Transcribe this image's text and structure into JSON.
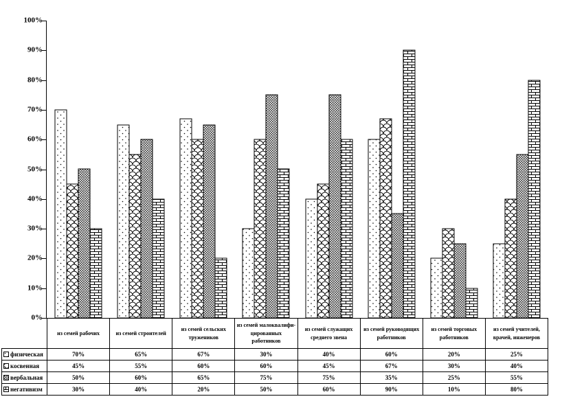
{
  "chart_data": {
    "type": "bar",
    "title": "",
    "xlabel": "",
    "ylabel": "",
    "ylim": [
      0,
      100
    ],
    "ytick_step": 10,
    "yticks": [
      "0%",
      "10%",
      "20%",
      "30%",
      "40%",
      "50%",
      "60%",
      "70%",
      "80%",
      "90%",
      "100%"
    ],
    "grid": false,
    "legend_position": "table-rows-below-chart",
    "style": "monochrome patterned bars, black outlines on white",
    "categories": [
      "из семей рабочих",
      "из семей строителей",
      "из семей сельских тружеников",
      "из семей малоквалифи-цированных работников",
      "из семей служащих среднего звена",
      "из семей руководящих работников",
      "из семей торговых работников",
      "из семей учителей, врачей, инженеров"
    ],
    "series": [
      {
        "name": "физическая",
        "pattern": "dots",
        "values": [
          70,
          65,
          67,
          30,
          40,
          60,
          20,
          25
        ]
      },
      {
        "name": "косвенная",
        "pattern": "scales",
        "values": [
          45,
          55,
          60,
          60,
          45,
          67,
          30,
          40
        ]
      },
      {
        "name": "вербальная",
        "pattern": "cross",
        "values": [
          50,
          60,
          65,
          75,
          75,
          35,
          25,
          55
        ]
      },
      {
        "name": "негативизм",
        "pattern": "brick",
        "values": [
          30,
          40,
          20,
          50,
          60,
          90,
          10,
          80
        ]
      }
    ]
  },
  "table": {
    "rows": [
      {
        "label": "физическая",
        "pattern": "dots",
        "values": [
          "70%",
          "65%",
          "67%",
          "30%",
          "40%",
          "60%",
          "20%",
          "25%"
        ]
      },
      {
        "label": "косвенная",
        "pattern": "scales",
        "values": [
          "45%",
          "55%",
          "60%",
          "60%",
          "45%",
          "67%",
          "30%",
          "40%"
        ]
      },
      {
        "label": "вербальная",
        "pattern": "cross",
        "values": [
          "50%",
          "60%",
          "65%",
          "75%",
          "75%",
          "35%",
          "25%",
          "55%"
        ]
      },
      {
        "label": "негативизм",
        "pattern": "brick",
        "values": [
          "30%",
          "40%",
          "20%",
          "50%",
          "60%",
          "90%",
          "10%",
          "80%"
        ]
      }
    ]
  },
  "colors": {
    "stroke": "#000000",
    "background": "#ffffff"
  }
}
